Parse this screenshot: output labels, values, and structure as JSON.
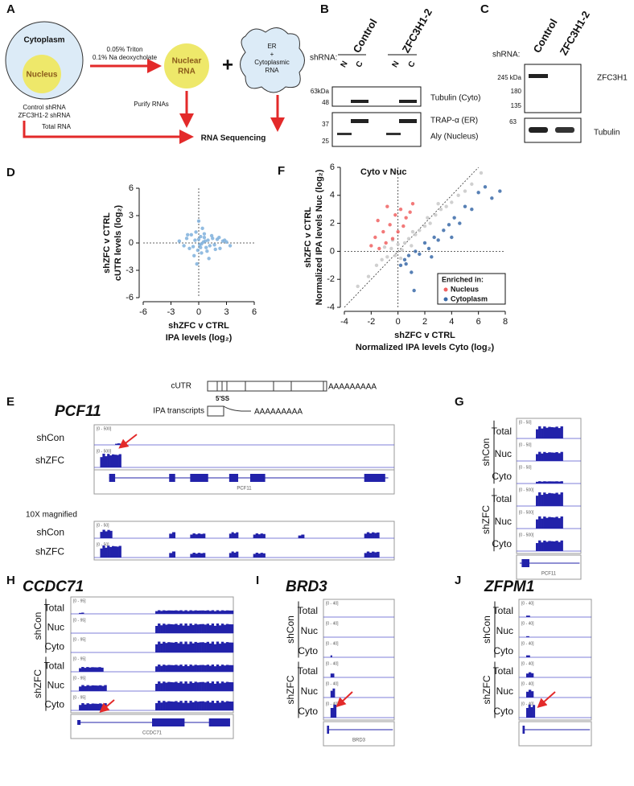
{
  "panel_labels": [
    "A",
    "B",
    "C",
    "D",
    "E",
    "F",
    "G",
    "H",
    "I",
    "J"
  ],
  "panel_a": {
    "cytoplasm": "Cytoplasm",
    "nucleus": "Nucleus",
    "treatment": [
      "0.05% Triton",
      "0.1% Na deoxycholate"
    ],
    "nuclear_rna": [
      "Nuclear",
      "RNA"
    ],
    "plus": "+",
    "er_rna": [
      "ER",
      "+",
      "Cytoplasmic",
      "RNA"
    ],
    "shrnas": [
      "Control shRNA",
      "ZFC3H1-2 shRNA"
    ],
    "purify": "Purify RNAs",
    "total_rna": "Total RNA",
    "sequencing": "RNA Sequencing"
  },
  "panel_b": {
    "shrna": "shRNA:",
    "conditions": [
      "Control",
      "ZFC3H1-2"
    ],
    "fractions": [
      "N",
      "C",
      "N",
      "C"
    ],
    "markers": [
      "63kDa",
      "48",
      "37",
      "25"
    ],
    "bands": [
      "Tubulin (Cyto)",
      "TRAP-α (ER)",
      "Aly (Nucleus)"
    ]
  },
  "panel_c": {
    "shrna": "shRNA:",
    "conditions": [
      "Control",
      "ZFC3H1-2"
    ],
    "markers": [
      "245 kDa",
      "180",
      "135",
      "63"
    ],
    "bands": [
      "ZFC3H1",
      "Tubulin"
    ]
  },
  "chart_data": [
    {
      "type": "scatter",
      "xlabel": [
        "shZFC v CTRL",
        "IPA levels (log₂)"
      ],
      "ylabel": [
        "shZFC v CTRL",
        "cUTR levels (log₂)"
      ],
      "xlim": [
        -6,
        6
      ],
      "xticks": [
        -6,
        -3,
        0,
        3,
        6
      ],
      "ylim": [
        -6,
        6
      ],
      "yticks": [
        -6,
        -3,
        0,
        3,
        6
      ],
      "series": [
        {
          "color": "#7fb0dc",
          "x": [
            -2.1,
            -1.6,
            -1.3,
            -1.0,
            -0.8,
            -0.6,
            -0.4,
            -0.3,
            -0.1,
            0,
            0.1,
            0.2,
            0.3,
            0.5,
            0.6,
            0.8,
            1.0,
            1.2,
            1.4,
            1.7,
            2.0,
            2.3,
            2.6,
            3.0,
            3.4,
            -0.5,
            0.4,
            0.9,
            1.5,
            -1.2,
            0.2,
            0.7,
            0.0,
            1.1,
            2.2,
            -0.2,
            0.6,
            1.8,
            0.3,
            2.8
          ],
          "values": [
            0.2,
            -0.3,
            0.5,
            -0.6,
            0.9,
            -0.4,
            0.3,
            1.2,
            -0.8,
            0.4,
            -0.2,
            0.7,
            -1.1,
            0.1,
            0.6,
            -0.5,
            0.3,
            -0.3,
            0.8,
            -0.2,
            0.4,
            -0.6,
            0.2,
            0.1,
            -0.3,
            -1.4,
            1.6,
            -0.9,
            0.5,
            0.9,
            -0.5,
            0.2,
            2.4,
            -1.7,
            0.6,
            -2.3,
            1.0,
            -0.7,
            -0.1,
            0.3
          ]
        }
      ]
    },
    {
      "type": "scatter",
      "title": "Cyto v Nuc",
      "xlabel": [
        "shZFC v CTRL",
        "Normalized IPA levels Cyto (log₂)"
      ],
      "ylabel": [
        "shZFC v CTRL",
        "Normalized IPA levels Nuc (log₂)"
      ],
      "xlim": [
        -4,
        8
      ],
      "xticks": [
        -4,
        -2,
        0,
        2,
        4,
        6,
        8
      ],
      "ylim": [
        -4,
        6
      ],
      "yticks": [
        -4,
        -2,
        0,
        2,
        4,
        6
      ],
      "legend_title": "Enriched in:",
      "legend": "lower right",
      "series": [
        {
          "color": "#c8c8c8",
          "x": [
            -3.0,
            -2.2,
            -1.6,
            -1.2,
            -0.8,
            -0.5,
            -0.2,
            0,
            0.3,
            0.5,
            0.8,
            1.0,
            1.3,
            1.6,
            2.0,
            2.4,
            2.8,
            3.2,
            3.6,
            4.0,
            4.5,
            5.0,
            5.5,
            6.2,
            -1.0,
            0.2,
            1.1,
            2.2,
            3.0,
            -0.4
          ],
          "values": [
            -2.5,
            -1.8,
            -1.0,
            -0.6,
            -0.4,
            0.2,
            -0.3,
            0.5,
            0.1,
            0.6,
            0.9,
            0.4,
            1.2,
            1.5,
            1.8,
            2.0,
            2.6,
            3.0,
            3.2,
            3.5,
            4.0,
            4.3,
            4.8,
            5.6,
            0.3,
            -0.5,
            1.4,
            2.4,
            3.4,
            0.8
          ]
        },
        {
          "name": "Nucleus",
          "color": "#f06262",
          "x": [
            -2.0,
            -1.7,
            -1.4,
            -1.1,
            -0.9,
            -0.6,
            -0.4,
            -0.2,
            0,
            0.2,
            0.4,
            0.6,
            -1.5,
            -0.8,
            0.9,
            1.1
          ],
          "values": [
            0.4,
            1.0,
            0.2,
            1.4,
            0.6,
            1.9,
            0.9,
            2.6,
            1.4,
            3.0,
            1.8,
            2.4,
            2.2,
            3.2,
            2.8,
            3.4
          ]
        },
        {
          "name": "Cytoplasm",
          "color": "#3a6aa8",
          "x": [
            0.2,
            0.5,
            0.8,
            1.0,
            1.3,
            1.6,
            2.0,
            2.3,
            2.7,
            3.0,
            3.4,
            3.8,
            4.2,
            4.6,
            5.0,
            5.5,
            6.0,
            6.5,
            7.0,
            7.6,
            1.2,
            2.5,
            4.0,
            0.6
          ],
          "values": [
            -1.0,
            -0.6,
            -0.3,
            -1.5,
            0.0,
            -0.2,
            0.6,
            0.2,
            1.0,
            0.8,
            1.5,
            1.9,
            2.4,
            2.0,
            3.2,
            3.0,
            4.2,
            4.6,
            3.8,
            4.3,
            -2.8,
            -0.4,
            1.0,
            -0.9
          ]
        }
      ]
    }
  ],
  "panel_e": {
    "gene": "PCF11",
    "cutr": "cUTR",
    "polya": "AAAAAAAAA",
    "splice": "5'SS",
    "ipa": "IPA transcripts",
    "tracks": [
      {
        "label": "shCon",
        "range": "[0 - 500]"
      },
      {
        "label": "shZFC",
        "range": "[0 - 500]"
      }
    ],
    "gene_label": "PCF11",
    "magnified": "10X magnified",
    "magnified_tracks": [
      {
        "label": "shCon",
        "range": "[0 - 50]"
      },
      {
        "label": "shZFC",
        "range": "[0 - 50]"
      }
    ]
  },
  "panel_g": {
    "groups": [
      "shCon",
      "shZFC"
    ],
    "tracks": [
      {
        "label": "Total",
        "range": "[0 - 50]"
      },
      {
        "label": "Nuc",
        "range": "[0 - 50]"
      },
      {
        "label": "Cyto",
        "range": "[0 - 50]"
      },
      {
        "label": "Total",
        "range": "[0 - 500]"
      },
      {
        "label": "Nuc",
        "range": "[0 - 500]"
      },
      {
        "label": "Cyto",
        "range": "[0 - 500]"
      }
    ],
    "gene_label": "PCF11"
  },
  "panel_h": {
    "gene": "CCDC71",
    "groups": [
      "shCon",
      "shZFC"
    ],
    "tracks": [
      {
        "label": "Total",
        "range": "[0 - 95]"
      },
      {
        "label": "Nuc",
        "range": "[0 - 95]"
      },
      {
        "label": "Cyto",
        "range": "[0 - 95]"
      },
      {
        "label": "Total",
        "range": "[0 - 95]"
      },
      {
        "label": "Nuc",
        "range": "[0 - 95]"
      },
      {
        "label": "Cyto",
        "range": "[0 - 95]"
      }
    ],
    "gene_label": "CCDC71"
  },
  "panel_i": {
    "gene": "BRD3",
    "groups": [
      "shCon",
      "shZFC"
    ],
    "tracks": [
      {
        "label": "Total",
        "range": "[0 - 40]"
      },
      {
        "label": "Nuc",
        "range": "[0 - 40]"
      },
      {
        "label": "Cyto",
        "range": "[0 - 40]"
      },
      {
        "label": "Total",
        "range": "[0 - 40]"
      },
      {
        "label": "Nuc",
        "range": "[0 - 40]"
      },
      {
        "label": "Cyto",
        "range": "[0 - 40]"
      }
    ],
    "gene_label": "BRD3"
  },
  "panel_j": {
    "gene": "ZFPM1",
    "groups": [
      "shCon",
      "shZFC"
    ],
    "tracks": [
      {
        "label": "Total",
        "range": "[0 - 40]"
      },
      {
        "label": "Nuc",
        "range": "[0 - 40]"
      },
      {
        "label": "Cyto",
        "range": "[0 - 40]"
      },
      {
        "label": "Total",
        "range": "[0 - 40]"
      },
      {
        "label": "Nuc",
        "range": "[0 - 40]"
      },
      {
        "label": "Cyto",
        "range": "[0 - 40]"
      }
    ]
  }
}
